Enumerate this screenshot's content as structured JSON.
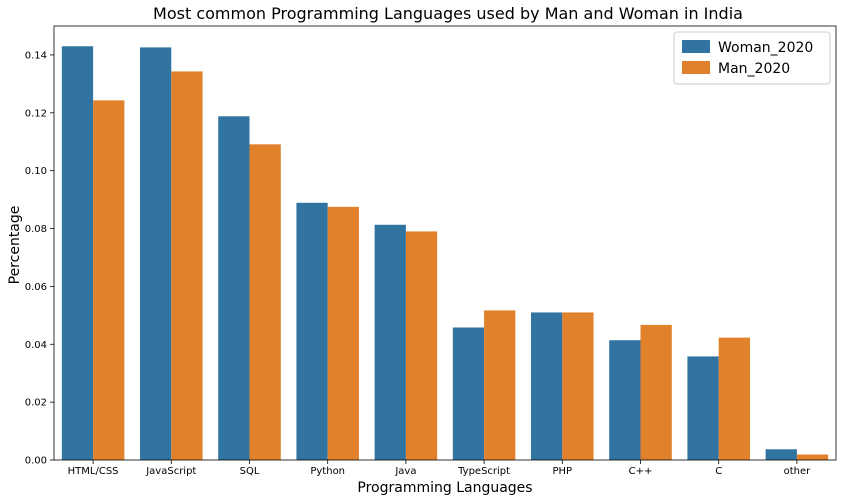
{
  "chart_data": {
    "type": "bar",
    "title": "Most common Programming Languages used by Man and Woman in India",
    "xlabel": "Programming Languages",
    "ylabel": "Percentage",
    "categories": [
      "HTML/CSS",
      "JavaScript",
      "SQL",
      "Python",
      "Java",
      "TypeScript",
      "PHP",
      "C++",
      "C",
      "other"
    ],
    "series": [
      {
        "name": "Woman_2020",
        "color": "#3274a1",
        "values": [
          0.143,
          0.1426,
          0.1188,
          0.0889,
          0.0813,
          0.0458,
          0.051,
          0.0414,
          0.0358,
          0.0037
        ]
      },
      {
        "name": "Man_2020",
        "color": "#e1812c",
        "values": [
          0.1243,
          0.1343,
          0.1091,
          0.0875,
          0.079,
          0.0517,
          0.051,
          0.0467,
          0.0423,
          0.0019
        ]
      }
    ],
    "ylim": [
      0,
      0.15
    ],
    "yticks": [
      "0.00",
      "0.02",
      "0.04",
      "0.06",
      "0.08",
      "0.10",
      "0.12",
      "0.14"
    ],
    "legend_position": "top-right",
    "grid": false
  }
}
